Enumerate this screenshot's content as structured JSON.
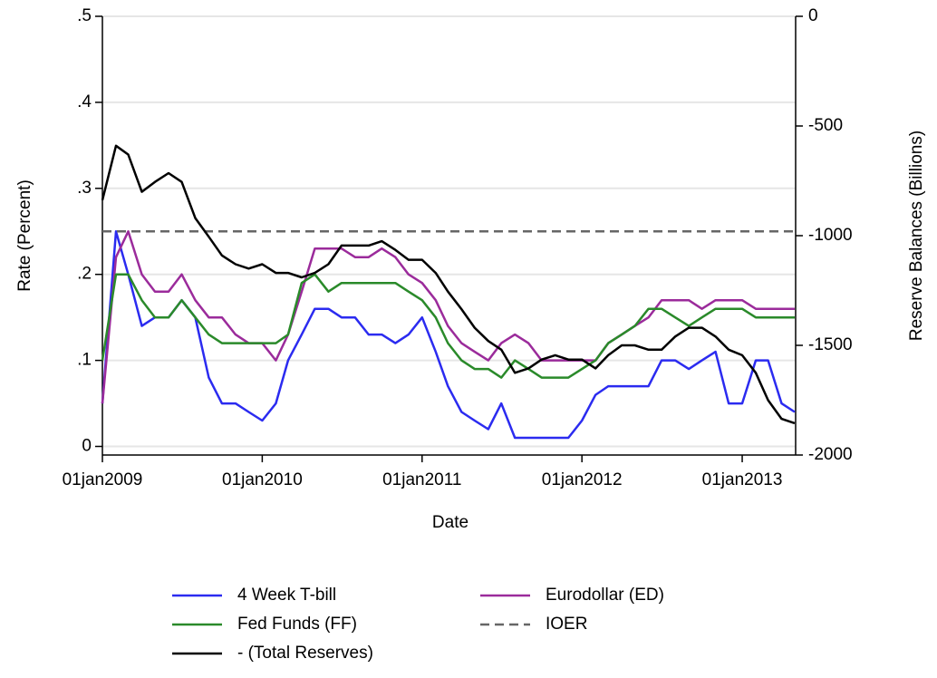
{
  "chart_data": {
    "type": "line",
    "x_label": "Date",
    "y_label": "Rate (Percent)",
    "y2_label": "Reserve Balances (Billions)",
    "x": [
      "2009-01-01",
      "2009-02-01",
      "2009-03-01",
      "2009-04-01",
      "2009-05-01",
      "2009-06-01",
      "2009-07-01",
      "2009-08-01",
      "2009-09-01",
      "2009-10-01",
      "2009-11-01",
      "2009-12-01",
      "2010-01-01",
      "2010-02-01",
      "2010-03-01",
      "2010-04-01",
      "2010-05-01",
      "2010-06-01",
      "2010-07-01",
      "2010-08-01",
      "2010-09-01",
      "2010-10-01",
      "2010-11-01",
      "2010-12-01",
      "2011-01-01",
      "2011-02-01",
      "2011-03-01",
      "2011-04-01",
      "2011-05-01",
      "2011-06-01",
      "2011-07-01",
      "2011-08-01",
      "2011-09-01",
      "2011-10-01",
      "2011-11-01",
      "2011-12-01",
      "2012-01-01",
      "2012-02-01",
      "2012-03-01",
      "2012-04-01",
      "2012-05-01",
      "2012-06-01",
      "2012-07-01",
      "2012-08-01",
      "2012-09-01",
      "2012-10-01",
      "2012-11-01",
      "2012-12-01",
      "2013-01-01",
      "2013-02-01",
      "2013-03-01",
      "2013-04-01",
      "2013-05-01"
    ],
    "xlim": [
      "2009-01-01",
      "2013-05-03"
    ],
    "xticks": [
      {
        "value": "2009-01-01",
        "label": "01jan2009"
      },
      {
        "value": "2010-01-01",
        "label": "01jan2010"
      },
      {
        "value": "2011-01-01",
        "label": "01jan2011"
      },
      {
        "value": "2012-01-01",
        "label": "01jan2012"
      },
      {
        "value": "2013-01-01",
        "label": "01jan2013"
      }
    ],
    "ylim": [
      -0.01,
      0.5
    ],
    "yticks": [
      {
        "value": 0,
        "label": "0"
      },
      {
        "value": 0.1,
        "label": ".1"
      },
      {
        "value": 0.2,
        "label": ".2"
      },
      {
        "value": 0.3,
        "label": ".3"
      },
      {
        "value": 0.4,
        "label": ".4"
      },
      {
        "value": 0.5,
        "label": ".5"
      }
    ],
    "y2lim": [
      -2000,
      0
    ],
    "y2ticks": [
      0,
      -500,
      -1000,
      -1500,
      -2000
    ],
    "grid": true,
    "series": [
      {
        "name": "4 Week T-bill",
        "color": "#2b2bf0",
        "values": [
          0.05,
          0.25,
          0.2,
          0.14,
          0.15,
          0.15,
          0.17,
          0.15,
          0.08,
          0.05,
          0.05,
          0.04,
          0.03,
          0.05,
          0.1,
          0.13,
          0.16,
          0.16,
          0.15,
          0.15,
          0.13,
          0.13,
          0.12,
          0.13,
          0.15,
          0.11,
          0.07,
          0.04,
          0.03,
          0.02,
          0.05,
          0.01,
          0.01,
          0.01,
          0.01,
          0.01,
          0.03,
          0.06,
          0.07,
          0.07,
          0.07,
          0.07,
          0.1,
          0.1,
          0.09,
          0.1,
          0.11,
          0.05,
          0.05,
          0.1,
          0.1,
          0.05,
          0.04
        ]
      },
      {
        "name": "Eurodollar (ED)",
        "color": "#9b2b9b",
        "values": [
          0.05,
          0.22,
          0.25,
          0.2,
          0.18,
          0.18,
          0.2,
          0.17,
          0.15,
          0.15,
          0.13,
          0.12,
          0.12,
          0.1,
          0.13,
          0.18,
          0.23,
          0.23,
          0.23,
          0.22,
          0.22,
          0.23,
          0.22,
          0.2,
          0.19,
          0.17,
          0.14,
          0.12,
          0.11,
          0.1,
          0.12,
          0.13,
          0.12,
          0.1,
          0.1,
          0.1,
          0.1,
          0.1,
          0.12,
          0.13,
          0.14,
          0.15,
          0.17,
          0.17,
          0.17,
          0.16,
          0.17,
          0.17,
          0.17,
          0.16,
          0.16,
          0.16,
          0.16
        ]
      },
      {
        "name": "Fed Funds (FF)",
        "color": "#2a8a2a",
        "values": [
          0.1,
          0.2,
          0.2,
          0.17,
          0.15,
          0.15,
          0.17,
          0.15,
          0.13,
          0.12,
          0.12,
          0.12,
          0.12,
          0.12,
          0.13,
          0.19,
          0.2,
          0.18,
          0.19,
          0.19,
          0.19,
          0.19,
          0.19,
          0.18,
          0.17,
          0.15,
          0.12,
          0.1,
          0.09,
          0.09,
          0.08,
          0.1,
          0.09,
          0.08,
          0.08,
          0.08,
          0.09,
          0.1,
          0.12,
          0.13,
          0.14,
          0.16,
          0.16,
          0.15,
          0.14,
          0.15,
          0.16,
          0.16,
          0.16,
          0.15,
          0.15,
          0.15,
          0.15
        ]
      },
      {
        "name": "IOER",
        "color": "#666666",
        "dash": true,
        "x": [
          "2009-01-01",
          "2013-05-03"
        ],
        "values": [
          0.25,
          0.25
        ]
      },
      {
        "name": "- (Total Reserves)",
        "color": "#000000",
        "axis": "y2",
        "values": [
          -838,
          -590,
          -630,
          -800,
          -755,
          -715,
          -755,
          -920,
          -1005,
          -1090,
          -1130,
          -1150,
          -1130,
          -1170,
          -1170,
          -1190,
          -1170,
          -1130,
          -1045,
          -1045,
          -1045,
          -1025,
          -1065,
          -1110,
          -1110,
          -1170,
          -1255,
          -1335,
          -1420,
          -1480,
          -1520,
          -1625,
          -1605,
          -1565,
          -1545,
          -1565,
          -1565,
          -1605,
          -1545,
          -1500,
          -1500,
          -1520,
          -1520,
          -1460,
          -1420,
          -1420,
          -1460,
          -1520,
          -1545,
          -1625,
          -1750,
          -1835,
          -1855
        ]
      }
    ]
  }
}
